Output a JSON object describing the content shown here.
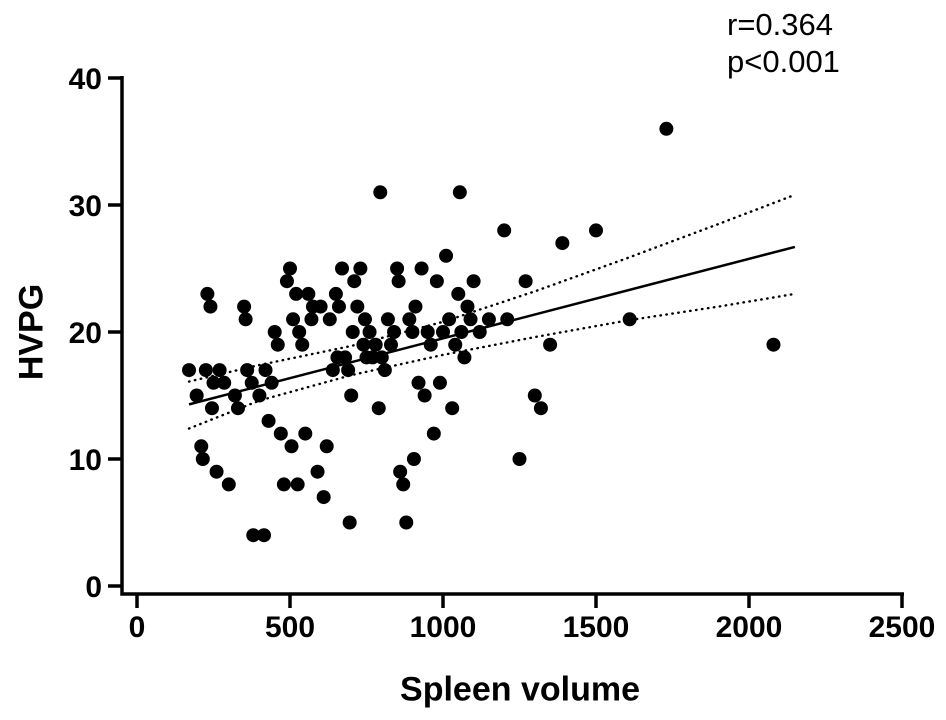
{
  "chart_data": {
    "type": "scatter",
    "title": "",
    "xlabel": "Spleen volume",
    "ylabel": "HVPG",
    "xlim": [
      0,
      2500
    ],
    "ylim": [
      0,
      40
    ],
    "xticks": [
      0,
      500,
      1000,
      1500,
      2000,
      2500
    ],
    "yticks": [
      0,
      10,
      20,
      30,
      40
    ],
    "grid": false,
    "legend": "none",
    "annotations": [
      "r=0.364",
      "p<0.001"
    ],
    "axis_color": "#000000",
    "point_color": "#000000",
    "point_radius": 7,
    "points": [
      [
        170,
        17
      ],
      [
        195,
        15
      ],
      [
        210,
        11
      ],
      [
        215,
        10
      ],
      [
        225,
        17
      ],
      [
        230,
        23
      ],
      [
        240,
        22
      ],
      [
        245,
        14
      ],
      [
        250,
        16
      ],
      [
        260,
        9
      ],
      [
        270,
        17
      ],
      [
        285,
        16
      ],
      [
        300,
        8
      ],
      [
        320,
        15
      ],
      [
        330,
        14
      ],
      [
        350,
        22
      ],
      [
        355,
        21
      ],
      [
        360,
        17
      ],
      [
        375,
        16
      ],
      [
        380,
        4
      ],
      [
        415,
        4
      ],
      [
        400,
        15
      ],
      [
        420,
        17
      ],
      [
        430,
        13
      ],
      [
        440,
        16
      ],
      [
        450,
        20
      ],
      [
        460,
        19
      ],
      [
        470,
        12
      ],
      [
        480,
        8
      ],
      [
        490,
        24
      ],
      [
        500,
        25
      ],
      [
        505,
        11
      ],
      [
        510,
        21
      ],
      [
        520,
        23
      ],
      [
        525,
        8
      ],
      [
        530,
        20
      ],
      [
        540,
        19
      ],
      [
        550,
        12
      ],
      [
        560,
        23
      ],
      [
        570,
        21
      ],
      [
        575,
        22
      ],
      [
        590,
        9
      ],
      [
        600,
        22
      ],
      [
        610,
        7
      ],
      [
        620,
        11
      ],
      [
        630,
        21
      ],
      [
        640,
        17
      ],
      [
        650,
        23
      ],
      [
        655,
        18
      ],
      [
        660,
        22
      ],
      [
        670,
        25
      ],
      [
        680,
        18
      ],
      [
        690,
        17
      ],
      [
        695,
        5
      ],
      [
        700,
        15
      ],
      [
        705,
        20
      ],
      [
        710,
        24
      ],
      [
        720,
        22
      ],
      [
        730,
        25
      ],
      [
        740,
        19
      ],
      [
        745,
        21
      ],
      [
        750,
        18
      ],
      [
        760,
        20
      ],
      [
        770,
        18
      ],
      [
        780,
        19
      ],
      [
        790,
        14
      ],
      [
        795,
        31
      ],
      [
        800,
        18
      ],
      [
        810,
        17
      ],
      [
        820,
        21
      ],
      [
        830,
        19
      ],
      [
        840,
        20
      ],
      [
        850,
        25
      ],
      [
        855,
        24
      ],
      [
        860,
        9
      ],
      [
        870,
        8
      ],
      [
        880,
        5
      ],
      [
        890,
        21
      ],
      [
        900,
        20
      ],
      [
        905,
        10
      ],
      [
        910,
        22
      ],
      [
        920,
        16
      ],
      [
        930,
        25
      ],
      [
        940,
        15
      ],
      [
        950,
        20
      ],
      [
        960,
        19
      ],
      [
        970,
        12
      ],
      [
        980,
        24
      ],
      [
        990,
        16
      ],
      [
        1000,
        20
      ],
      [
        1010,
        26
      ],
      [
        1020,
        21
      ],
      [
        1030,
        14
      ],
      [
        1040,
        19
      ],
      [
        1050,
        23
      ],
      [
        1055,
        31
      ],
      [
        1060,
        20
      ],
      [
        1070,
        18
      ],
      [
        1080,
        22
      ],
      [
        1090,
        21
      ],
      [
        1100,
        24
      ],
      [
        1120,
        20
      ],
      [
        1150,
        21
      ],
      [
        1200,
        28
      ],
      [
        1210,
        21
      ],
      [
        1250,
        10
      ],
      [
        1270,
        24
      ],
      [
        1300,
        15
      ],
      [
        1320,
        14
      ],
      [
        1350,
        19
      ],
      [
        1390,
        27
      ],
      [
        1500,
        28
      ],
      [
        1610,
        21
      ],
      [
        1730,
        36
      ],
      [
        2080,
        19
      ]
    ],
    "regression_line": {
      "x1": 170,
      "y1": 14.3,
      "x2": 2150,
      "y2": 26.7
    },
    "ci_upper": {
      "x": [
        170,
        400,
        700,
        1000,
        1300,
        1600,
        1900,
        2150
      ],
      "y": [
        16.1,
        17.4,
        18.9,
        20.8,
        23.2,
        25.8,
        28.5,
        30.8
      ]
    },
    "ci_lower": {
      "x": [
        170,
        400,
        700,
        1000,
        1300,
        1600,
        1900,
        2150
      ],
      "y": [
        12.4,
        14.6,
        16.6,
        18.2,
        19.6,
        20.9,
        22.0,
        23.0
      ]
    }
  }
}
